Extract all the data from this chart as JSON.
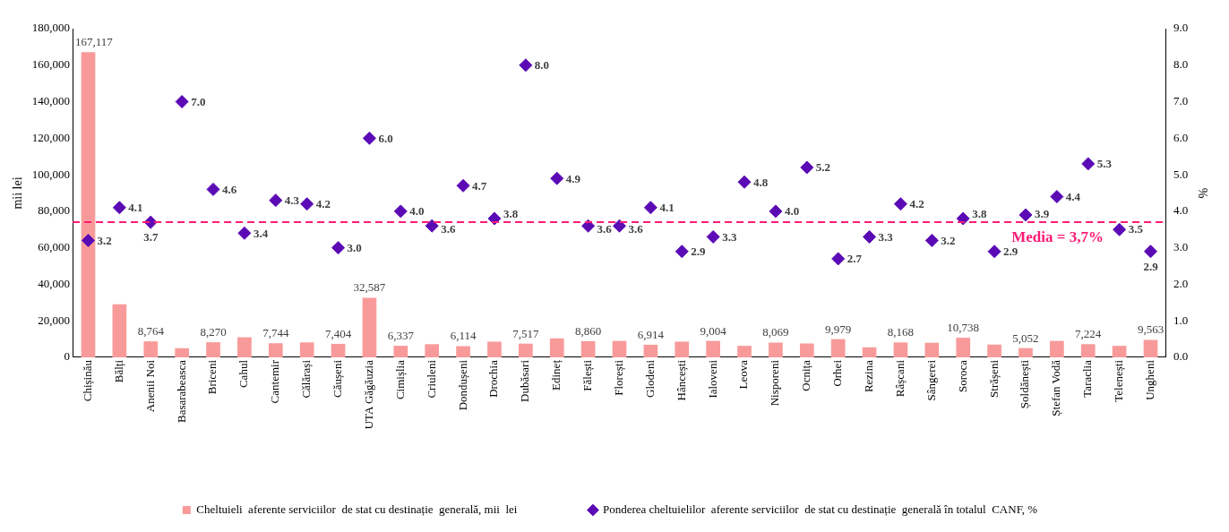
{
  "chart_data": {
    "type": "bar",
    "ylabel": "mii lei",
    "y2label": "%",
    "categories": [
      "Chișinău",
      "Bălți",
      "Anenii Noi",
      "Basarabeasca",
      "Briceni",
      "Cahul",
      "Cantemir",
      "Călărași",
      "Căușeni",
      "UTA Găgăuzia",
      "Cimișlia",
      "Criuleni",
      "Dondușeni",
      "Drochia",
      "Dubăsari",
      "Edineț",
      "Fălești",
      "Florești",
      "Glodeni",
      "Hâncești",
      "Ialoveni",
      "Leova",
      "Nisporeni",
      "Ocnița",
      "Orhei",
      "Rezina",
      "Râșcani",
      "Sângerei",
      "Soroca",
      "Strășeni",
      "Șoldănești",
      "Ștefan Vodă",
      "Taraclia",
      "Telenești",
      "Ungheni"
    ],
    "series": [
      {
        "name": "Cheltuieli  aferente serviciilor  de stat cu destinație  generală, mii  lei",
        "color": "#f99a9a",
        "values": [
          167117,
          29000,
          8764,
          5000,
          8270,
          11000,
          7744,
          8200,
          7404,
          32587,
          6337,
          7200,
          6114,
          8600,
          7517,
          10400,
          8860,
          9000,
          6914,
          8600,
          9004,
          6300,
          8069,
          7600,
          9979,
          5500,
          8168,
          8000,
          10738,
          7000,
          5052,
          9000,
          7224,
          6300,
          9563
        ],
        "value_labels": [
          "167,117",
          null,
          "8,764",
          null,
          "8,270",
          null,
          "7,744",
          null,
          "7,404",
          "32,587",
          "6,337",
          null,
          "6,114",
          null,
          "7,517",
          null,
          "8,860",
          null,
          "6,914",
          null,
          "9,004",
          null,
          "8,069",
          null,
          "9,979",
          null,
          "8,168",
          null,
          "10,738",
          null,
          "5,052",
          null,
          "7,224",
          null,
          "9,563"
        ]
      },
      {
        "type": "scatter",
        "axis": "y2",
        "marker": "diamond",
        "name": "Ponderea cheltuielilor  aferente serviciilor  de stat cu destinație  generală în totalul  CANF, %",
        "color": "#5b0bb5",
        "values": [
          3.2,
          4.1,
          3.7,
          7.0,
          4.6,
          3.4,
          4.3,
          4.2,
          3.0,
          6.0,
          4.0,
          3.6,
          4.7,
          3.8,
          8.0,
          4.9,
          3.6,
          3.6,
          4.1,
          2.9,
          3.3,
          4.8,
          4.0,
          5.2,
          2.7,
          3.3,
          4.2,
          3.2,
          3.8,
          2.9,
          3.9,
          4.4,
          5.3,
          3.5,
          2.9
        ],
        "value_labels": [
          "3.2",
          "4.1",
          "3.7",
          "7.0",
          "4.6",
          "3.4",
          "4.3",
          "4.2",
          "3.0",
          "6.0",
          "4.0",
          "3.6",
          "4.7",
          "3.8",
          "8.0",
          "4.9",
          "3.6",
          "3.6",
          "4.1",
          "2.9",
          "3.3",
          "4.8",
          "4.0",
          "5.2",
          "2.7",
          "3.3",
          "4.2",
          "3.2",
          "3.8",
          "2.9",
          "3.9",
          "4.4",
          "5.3",
          "3.5",
          "2.9"
        ]
      }
    ],
    "ylim": [
      0,
      180000
    ],
    "yticks": [
      0,
      {
        "value": 20000,
        "label": "20,000"
      },
      {
        "value": 40000,
        "label": "40,000"
      },
      {
        "value": 60000,
        "label": "60,000"
      },
      {
        "value": 80000,
        "label": "80,000"
      },
      {
        "value": 100000,
        "label": "100,000"
      },
      {
        "value": 120000,
        "label": "120,000"
      },
      {
        "value": 140000,
        "label": "140,000"
      },
      {
        "value": 160000,
        "label": "160,000"
      },
      {
        "value": 180000,
        "label": "180,000"
      }
    ],
    "y2lim": [
      0,
      9
    ],
    "y2ticks": [
      {
        "value": 0,
        "label": "0.0"
      },
      {
        "value": 1,
        "label": "1.0"
      },
      {
        "value": 2,
        "label": "2.0"
      },
      {
        "value": 3,
        "label": "3.0"
      },
      {
        "value": 4,
        "label": "4.0"
      },
      {
        "value": 5,
        "label": "5.0"
      },
      {
        "value": 6,
        "label": "6.0"
      },
      {
        "value": 7,
        "label": "7.0"
      },
      {
        "value": 8,
        "label": "8.0"
      },
      {
        "value": 9,
        "label": "9.0"
      }
    ],
    "ref_lines": [
      {
        "axis": "y2",
        "value": 3.7,
        "label": "Media = 3,7%",
        "color": "#ff1a75",
        "line_style": "dashed"
      }
    ],
    "grid": false,
    "legend": "bottom"
  }
}
